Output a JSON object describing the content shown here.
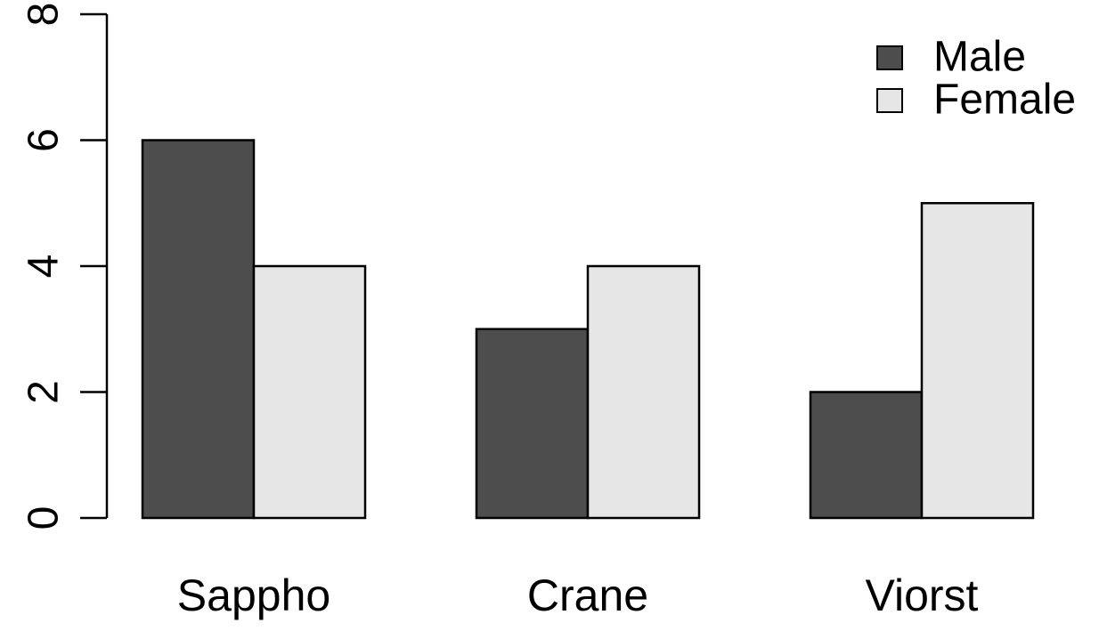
{
  "chart_data": {
    "type": "bar",
    "categories": [
      "Sappho",
      "Crane",
      "Viorst"
    ],
    "series": [
      {
        "name": "Male",
        "color": "#4d4d4d",
        "values": [
          6,
          3,
          2
        ]
      },
      {
        "name": "Female",
        "color": "#e6e6e6",
        "values": [
          4,
          4,
          5
        ]
      }
    ],
    "ylim": [
      0,
      8
    ],
    "yticks": [
      0,
      2,
      4,
      6,
      8
    ],
    "grid": false,
    "legend": "top-right"
  }
}
